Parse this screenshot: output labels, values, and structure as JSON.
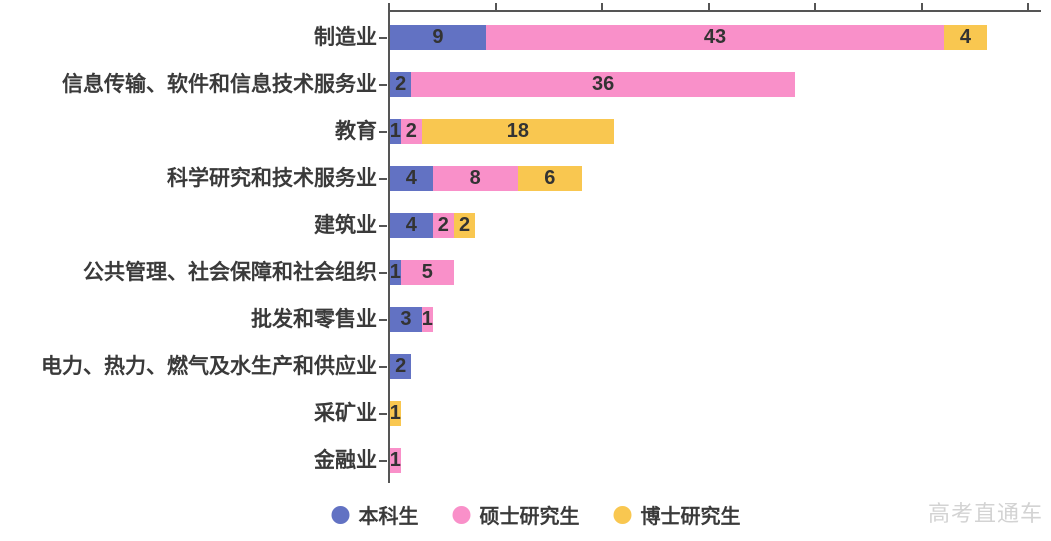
{
  "chart_data": {
    "type": "bar",
    "orientation": "horizontal",
    "stacked": true,
    "title": "",
    "xlabel": "",
    "ylabel": "",
    "categories": [
      "制造业",
      "信息传输、软件和信息技术服务业",
      "教育",
      "科学研究和技术服务业",
      "建筑业",
      "公共管理、社会保障和社会组织",
      "批发和零售业",
      "电力、热力、燃气及水生产和供应业",
      "采矿业",
      "金融业"
    ],
    "series": [
      {
        "name": "本科生",
        "key": "undergraduate",
        "color": "#6272c3",
        "values": [
          9,
          2,
          1,
          4,
          4,
          1,
          3,
          2,
          0,
          0
        ]
      },
      {
        "name": "硕士研究生",
        "key": "masters",
        "color": "#f990c9",
        "values": [
          43,
          36,
          2,
          8,
          2,
          5,
          1,
          0,
          0,
          1
        ]
      },
      {
        "name": "博士研究生",
        "key": "doctoral",
        "color": "#f9c750",
        "values": [
          4,
          0,
          18,
          6,
          2,
          0,
          0,
          0,
          1,
          0
        ]
      }
    ],
    "xlim": [
      0,
      61
    ],
    "x_tick_interval": 10,
    "x_tick_labels_visible": false,
    "grid": false,
    "bar_value_labels": true,
    "legend_position": "bottom",
    "axis_color": "#555555",
    "category_label_color": "#3a3a3a",
    "value_label_color": "#333333"
  },
  "watermark": {
    "text": "高考直通车",
    "color": "#d3d3d3"
  }
}
